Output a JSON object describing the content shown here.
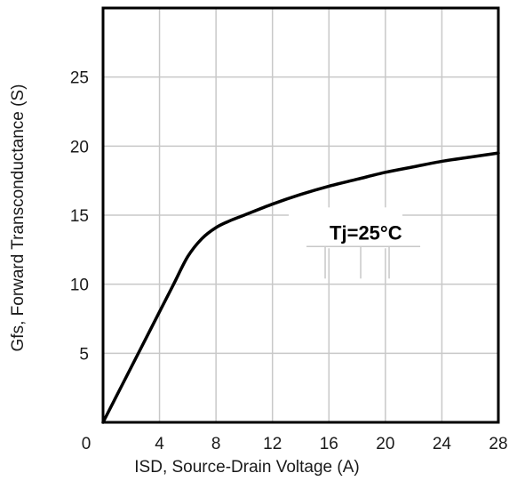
{
  "chart_data": {
    "type": "line",
    "xlabel": "ISD, Source-Drain Voltage (A)",
    "ylabel": "Gfs, Forward Transconductance (S)",
    "xlim": [
      0,
      28
    ],
    "ylim": [
      0,
      30
    ],
    "x_ticks": [
      0,
      4,
      8,
      12,
      16,
      20,
      24,
      28
    ],
    "x_tick_labels": [
      "0",
      "4",
      "8",
      "12",
      "16",
      "20",
      "24",
      "28"
    ],
    "y_ticks": [
      5,
      10,
      15,
      20,
      25
    ],
    "y_tick_labels": [
      "5",
      "10",
      "15",
      "20",
      "25"
    ],
    "grid": true,
    "series": [
      {
        "x": [
          0,
          2,
          4,
          5,
          6,
          7,
          8,
          9,
          10,
          12,
          14,
          16,
          18,
          20,
          22,
          24,
          26,
          28
        ],
        "y": [
          0,
          4.0,
          8.0,
          10.0,
          12.0,
          13.3,
          14.1,
          14.6,
          15.0,
          15.8,
          16.5,
          17.1,
          17.6,
          18.1,
          18.5,
          18.9,
          19.2,
          19.5
        ]
      }
    ],
    "annotations": [
      {
        "text": "Tj=25°C",
        "x": 16.3,
        "y": 13.5
      }
    ],
    "colors": {
      "line": "#000000",
      "grid": "#c8c8c8",
      "frame": "#000000"
    }
  }
}
